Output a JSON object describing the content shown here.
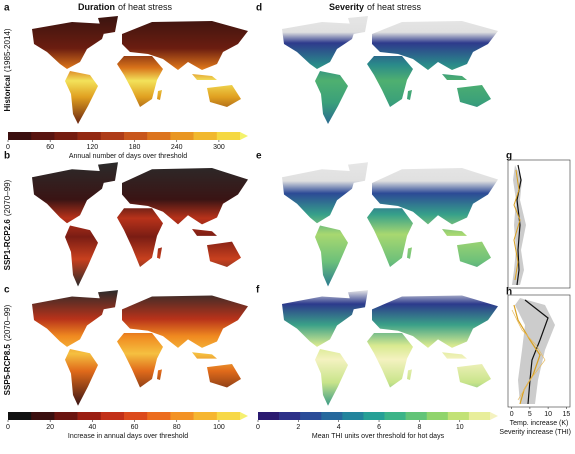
{
  "letters": [
    "a",
    "b",
    "c",
    "d",
    "e",
    "f",
    "g",
    "h"
  ],
  "titles": [
    {
      "bold": "Duration",
      "rest": "of heat stress"
    },
    {
      "bold": "Severity",
      "rest": "of heat stress"
    }
  ],
  "rows": [
    {
      "bold": "Historical",
      "rest": "(1985-2014)"
    },
    {
      "bold": "SSP1-RCP2.6",
      "rest": "(2070–99)"
    },
    {
      "bold": "SSP5-RCP8.5",
      "rest": "(2070–99)"
    }
  ],
  "colorbars": [
    {
      "label": "Annual number of days over threshold",
      "ticks": [
        0,
        60,
        120,
        180,
        240,
        300
      ],
      "lim": [
        0,
        330
      ],
      "colors": [
        "#3b0f0f",
        "#581410",
        "#741c10",
        "#922812",
        "#ae3c18",
        "#c8561c",
        "#dc741e",
        "#e99622",
        "#f1b82e",
        "#f5d842",
        "#f4f26c"
      ]
    },
    {
      "label": "Increase in annual days over threshold",
      "ticks": [
        0,
        20,
        40,
        60,
        80,
        100
      ],
      "lim": [
        0,
        110
      ],
      "colors": [
        "#111111",
        "#3a0f0f",
        "#6a1410",
        "#9a1e12",
        "#c23018",
        "#dc4a1c",
        "#ec6c1e",
        "#f39224",
        "#f6b630",
        "#f7d846",
        "#f6f070"
      ]
    },
    {
      "label": "Mean THI units over threshold for hot days",
      "ticks": [
        0,
        2,
        4,
        6,
        8,
        10
      ],
      "lim": [
        0,
        11.5
      ],
      "colors": [
        "#2a1a70",
        "#2c3088",
        "#2a4c98",
        "#26689c",
        "#22849c",
        "#26a096",
        "#3cb488",
        "#62c478",
        "#90d46c",
        "#c2e276",
        "#e8ee9a",
        "#f4f2c0"
      ]
    }
  ],
  "profile": {
    "xticks": [
      0,
      5,
      10,
      15
    ],
    "xlim": [
      -1,
      16
    ],
    "xlabel": "Temp. increase (K)",
    "xlabel2": "Severity increase (THI)",
    "colors": [
      "#111111",
      "#d9a020"
    ]
  }
}
